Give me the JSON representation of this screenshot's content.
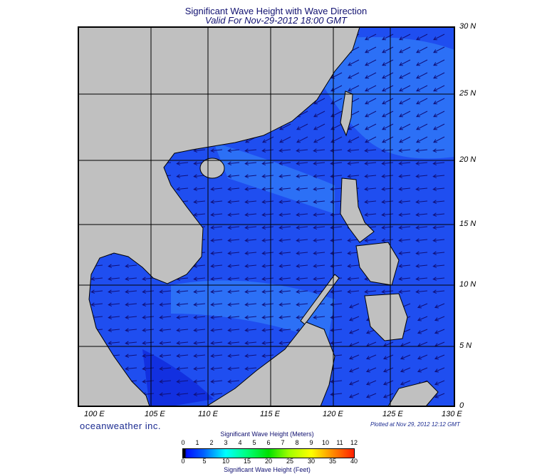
{
  "title": "Significant Wave Height with Wave Direction",
  "subtitle": "Valid For Nov-29-2012 18:00 GMT",
  "lon_labels": [
    "100 E",
    "105 E",
    "110 E",
    "115 E",
    "120 E",
    "125 E",
    "130 E"
  ],
  "lat_labels": [
    "30 N",
    "25 N",
    "20 N",
    "15 N",
    "10 N",
    "5 N",
    "0"
  ],
  "brand": "oceanweather inc.",
  "plotted": "Plotted at Nov 29, 2012 12:12 GMT",
  "colorbar": {
    "title_meters": "Significant Wave Height (Meters)",
    "title_feet": "Significant Wave Height (Feet)",
    "meters_ticks": [
      "0",
      "1",
      "2",
      "3",
      "4",
      "5",
      "6",
      "7",
      "8",
      "9",
      "10",
      "11",
      "12"
    ],
    "feet_ticks": [
      "0",
      "5",
      "10",
      "15",
      "20",
      "25",
      "30",
      "35",
      "40"
    ]
  },
  "colors": {
    "ocean": "#1f4ef0",
    "ocean_light": "#2c70f6",
    "land": "#c0c0c0",
    "arrow": "#10107a"
  },
  "wave_direction": "mostly from northeast to southwest"
}
